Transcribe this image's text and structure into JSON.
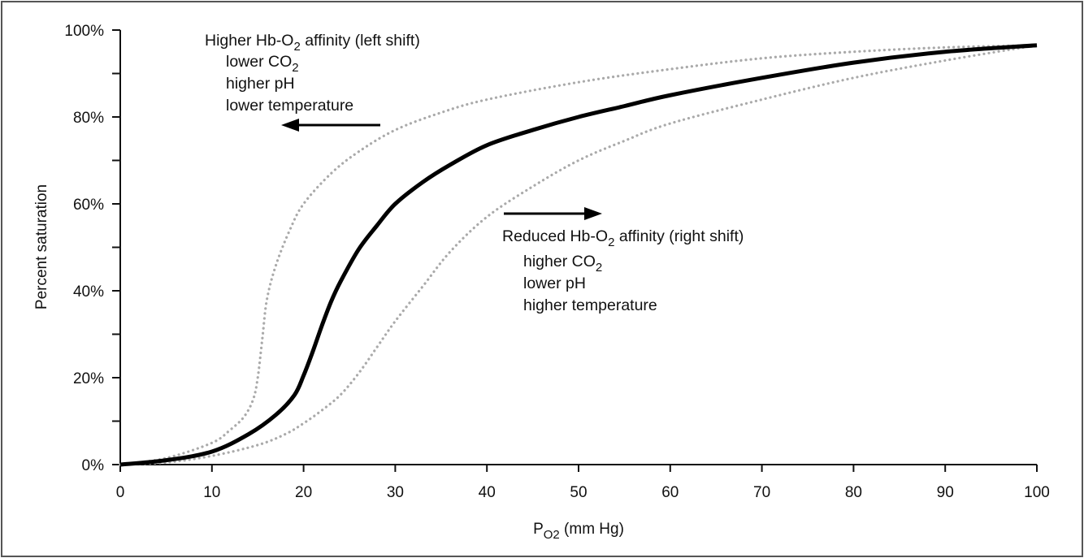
{
  "chart_data": {
    "type": "line",
    "xlabel": {
      "main": "P",
      "sub": "O2",
      "suffix": " (mm Hg)"
    },
    "ylabel": "Percent saturation",
    "xlim": [
      0,
      100
    ],
    "ylim": [
      0,
      100
    ],
    "x_ticks": [
      "0",
      "10",
      "20",
      "30",
      "40",
      "50",
      "60",
      "70",
      "80",
      "90",
      "100"
    ],
    "y_ticks": [
      "0%",
      "20%",
      "40%",
      "60%",
      "80%",
      "100%"
    ],
    "grid": false,
    "series": [
      {
        "style": "solid",
        "color": "#000000",
        "points": [
          [
            0,
            0
          ],
          [
            5,
            1
          ],
          [
            10,
            3
          ],
          [
            14,
            7
          ],
          [
            17,
            11.5
          ],
          [
            19,
            16
          ],
          [
            20,
            20.5
          ],
          [
            21,
            26
          ],
          [
            22,
            32
          ],
          [
            23,
            37.5
          ],
          [
            24,
            42
          ],
          [
            26,
            49.5
          ],
          [
            28,
            55
          ],
          [
            30,
            60
          ],
          [
            33,
            65
          ],
          [
            36,
            69
          ],
          [
            40,
            73.5
          ],
          [
            45,
            77
          ],
          [
            50,
            80
          ],
          [
            55,
            82.5
          ],
          [
            60,
            85
          ],
          [
            70,
            89
          ],
          [
            80,
            92.5
          ],
          [
            90,
            95
          ],
          [
            100,
            96.5
          ]
        ]
      },
      {
        "style": "dotted",
        "color": "#aaaaaa",
        "points": [
          [
            0,
            0
          ],
          [
            5,
            1.5
          ],
          [
            10,
            5
          ],
          [
            12,
            8
          ],
          [
            13.5,
            11
          ],
          [
            14.5,
            15
          ],
          [
            15,
            20
          ],
          [
            15.5,
            29
          ],
          [
            16,
            38
          ],
          [
            17,
            46
          ],
          [
            18.5,
            54
          ],
          [
            20,
            60
          ],
          [
            23,
            67
          ],
          [
            26,
            72
          ],
          [
            30,
            77
          ],
          [
            35,
            81
          ],
          [
            40,
            84
          ],
          [
            50,
            88
          ],
          [
            60,
            91
          ],
          [
            70,
            93.5
          ],
          [
            80,
            95
          ],
          [
            90,
            96
          ],
          [
            100,
            96.5
          ]
        ]
      },
      {
        "style": "dotted",
        "color": "#aaaaaa",
        "points": [
          [
            0,
            0
          ],
          [
            5,
            0.5
          ],
          [
            10,
            2
          ],
          [
            15,
            4.5
          ],
          [
            18,
            7
          ],
          [
            20,
            9.5
          ],
          [
            22,
            12.5
          ],
          [
            24,
            16
          ],
          [
            26,
            21
          ],
          [
            28,
            27
          ],
          [
            30,
            33
          ],
          [
            33,
            41
          ],
          [
            36,
            49
          ],
          [
            40,
            57
          ],
          [
            45,
            64
          ],
          [
            50,
            70
          ],
          [
            55,
            74.5
          ],
          [
            60,
            78.5
          ],
          [
            70,
            84
          ],
          [
            80,
            89
          ],
          [
            90,
            93
          ],
          [
            100,
            96.5
          ]
        ]
      }
    ],
    "annotations": {
      "left": {
        "title_pre": "Higher Hb-O",
        "title_sub": "2",
        "title_post": " affinity (left shift)",
        "line1_pre": "lower CO",
        "line1_sub": "2",
        "line2": "higher pH",
        "line3": "lower temperature"
      },
      "right": {
        "title_pre": "Reduced Hb-O",
        "title_sub": "2",
        "title_post": " affinity (right shift)",
        "line1_pre": "higher CO",
        "line1_sub": "2",
        "line2": "lower pH",
        "line3": "higher temperature"
      }
    }
  }
}
